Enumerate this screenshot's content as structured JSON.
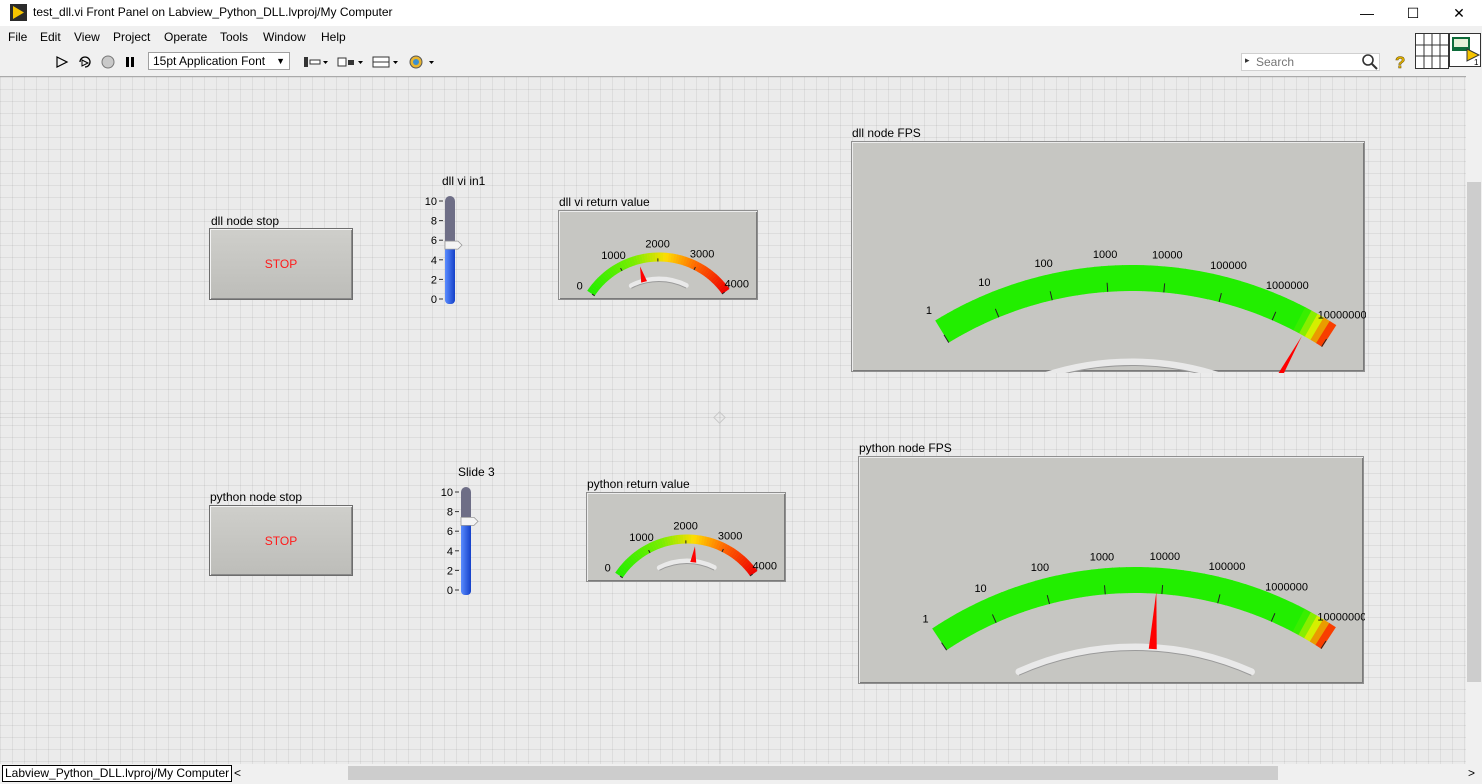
{
  "window": {
    "title": "test_dll.vi Front Panel on Labview_Python_DLL.lvproj/My Computer",
    "minimize": "—",
    "maximize": "☐",
    "close": "✕"
  },
  "menu": [
    "File",
    "Edit",
    "View",
    "Project",
    "Operate",
    "Tools",
    "Window",
    "Help"
  ],
  "toolbar": {
    "font": "15pt Application Font",
    "search_placeholder": "Search"
  },
  "controls": {
    "dll_stop": {
      "label": "dll node stop",
      "text": "STOP"
    },
    "python_stop": {
      "label": "python node stop",
      "text": "STOP"
    },
    "dll_slider": {
      "label": "dll vi in1",
      "ticks": [
        "10",
        "8",
        "6",
        "4",
        "2",
        "0"
      ],
      "value": 5.5,
      "max": 10
    },
    "python_slider": {
      "label": "Slide 3",
      "ticks": [
        "10",
        "8",
        "6",
        "4",
        "2",
        "0"
      ],
      "value": 7,
      "max": 10
    },
    "dll_return": {
      "label": "dll vi return value",
      "ticks": [
        "0",
        "1000",
        "2000",
        "3000",
        "4000"
      ],
      "value": 1500
    },
    "python_return": {
      "label": "python return value",
      "ticks": [
        "0",
        "1000",
        "2000",
        "3000",
        "4000"
      ],
      "value": 2250
    },
    "dll_fps": {
      "label": "dll node FPS",
      "ticks": [
        "1",
        "10",
        "100",
        "1000",
        "10000",
        "100000",
        "1000000",
        "10000000"
      ],
      "value_log": 6.6
    },
    "python_fps": {
      "label": "python node FPS",
      "ticks": [
        "1",
        "10",
        "100",
        "1000",
        "10000",
        "100000",
        "1000000",
        "10000000"
      ],
      "value_log": 3.9
    }
  },
  "status": {
    "path": "Labview_Python_DLL.lvproj/My Computer"
  },
  "colors": {
    "stop_text": "#ff1a1a",
    "needle": "#ff0000",
    "slider_fill": "#1f5fe0",
    "gauge_green": "#22ee00"
  }
}
